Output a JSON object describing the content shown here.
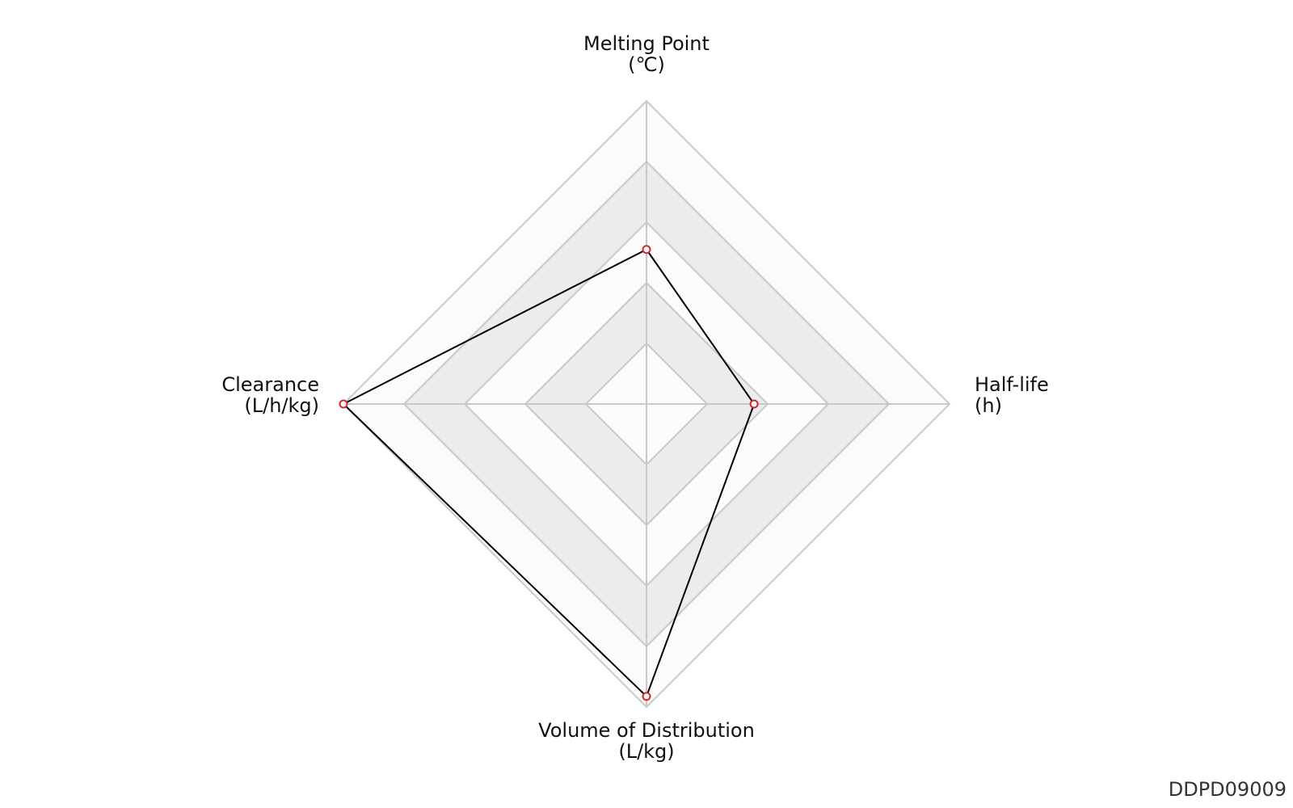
{
  "chart_data": {
    "type": "radar",
    "axes": [
      {
        "label_line1": "Melting Point",
        "label_line2": "(℃)"
      },
      {
        "label_line1": "Half-life",
        "label_line2": "(h)"
      },
      {
        "label_line1": "Volume of Distribution",
        "label_line2": "(L/kg)"
      },
      {
        "label_line1": "Clearance",
        "label_line2": "(L/h/kg)"
      }
    ],
    "series": [
      {
        "values": [
          0.51,
          0.355,
          0.965,
          1.0
        ]
      }
    ],
    "rlim": [
      0,
      1
    ],
    "rings": 5,
    "colors": {
      "series_line": "#000000",
      "marker_edge": "#d62728",
      "band_fill": "#ececec",
      "band_light": "#fbfbfb",
      "grid": "#c8c8c8"
    }
  },
  "watermark": "DDPD09009"
}
